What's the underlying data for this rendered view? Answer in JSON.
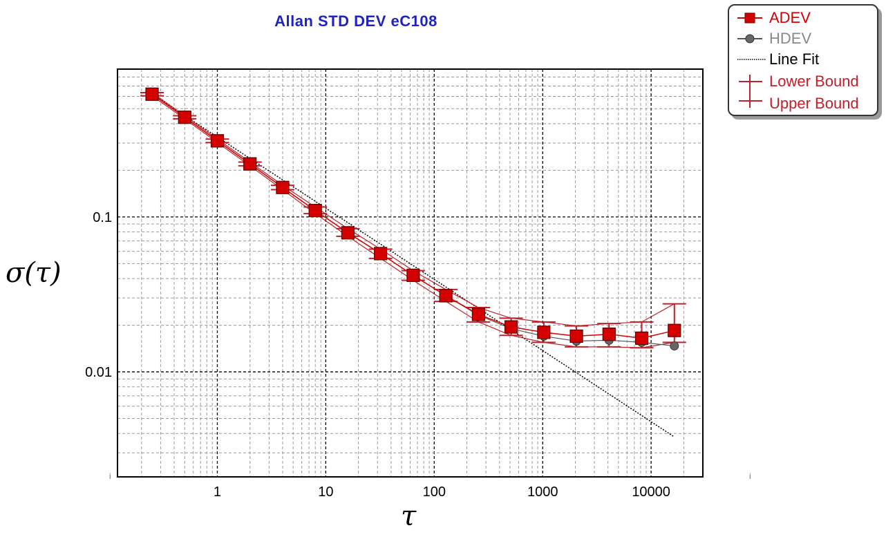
{
  "chart_data": {
    "type": "line",
    "title": "Allan STD DEV eC108",
    "xlabel": "τ",
    "ylabel": "σ(τ)",
    "x_scale": "log",
    "y_scale": "log",
    "xlim": [
      0.12,
      30000
    ],
    "ylim": [
      0.0021,
      0.9
    ],
    "x_tick_labels": [
      "1",
      "10",
      "100",
      "1000",
      "10000"
    ],
    "x_tick_values": [
      1,
      10,
      100,
      1000,
      10000
    ],
    "y_tick_labels": [
      "0.1",
      "0.01"
    ],
    "y_tick_values": [
      0.1,
      0.01
    ],
    "grid": true,
    "legend_position": "top-right",
    "colors": {
      "adev": "#d40000",
      "hdev": "#555555",
      "line_fit": "#000000",
      "bounds": "#c0202a",
      "title": "#1f23c4"
    },
    "tau": [
      0.25,
      0.5,
      1,
      2,
      4,
      8,
      16,
      32,
      64,
      128,
      256,
      512,
      1024,
      2048,
      4096,
      8192,
      16384
    ],
    "series": [
      {
        "name": "ADEV",
        "values": [
          0.62,
          0.44,
          0.31,
          0.22,
          0.155,
          0.11,
          0.079,
          0.058,
          0.042,
          0.031,
          0.0235,
          0.0195,
          0.018,
          0.017,
          0.0175,
          0.0165,
          0.0185
        ]
      },
      {
        "name": "HDEV",
        "values": [
          0.62,
          0.44,
          0.31,
          0.22,
          0.155,
          0.11,
          0.079,
          0.058,
          0.042,
          0.031,
          0.0232,
          0.019,
          0.017,
          0.0158,
          0.016,
          0.0155,
          0.0147
        ]
      },
      {
        "name": "Line Fit",
        "x": [
          0.25,
          16384
        ],
        "values": [
          0.62,
          0.0038
        ]
      },
      {
        "name": "Lower Bound",
        "values": [
          0.605,
          0.43,
          0.302,
          0.214,
          0.15,
          0.105,
          0.075,
          0.054,
          0.039,
          0.0285,
          0.021,
          0.0172,
          0.0155,
          0.0145,
          0.0145,
          0.0143,
          0.0155
        ]
      },
      {
        "name": "Upper Bound",
        "values": [
          0.635,
          0.45,
          0.318,
          0.226,
          0.16,
          0.116,
          0.084,
          0.062,
          0.045,
          0.034,
          0.026,
          0.0222,
          0.021,
          0.0198,
          0.0205,
          0.021,
          0.0275
        ]
      }
    ]
  },
  "legend": {
    "items": [
      {
        "label": "ADEV",
        "color": "#d40000",
        "symbol": "square-line"
      },
      {
        "label": "HDEV",
        "color": "#888888",
        "symbol": "circle-line"
      },
      {
        "label": "Line Fit",
        "color": "#000000",
        "symbol": "dotted-line"
      },
      {
        "label": "Lower Bound",
        "color": "#c0202a",
        "symbol": "error-bar"
      },
      {
        "label": "Upper Bound",
        "color": "#c0202a",
        "symbol": "none"
      }
    ]
  }
}
